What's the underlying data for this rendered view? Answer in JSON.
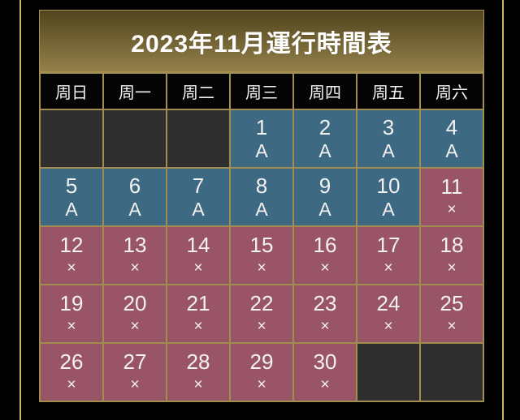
{
  "title": "2023年11月運行時間表",
  "calendar": {
    "weekdays": [
      "周日",
      "周一",
      "周二",
      "周三",
      "周四",
      "周五",
      "周六"
    ],
    "weeks": [
      [
        null,
        null,
        null,
        {
          "day": "1",
          "mark": "A"
        },
        {
          "day": "2",
          "mark": "A"
        },
        {
          "day": "3",
          "mark": "A"
        },
        {
          "day": "4",
          "mark": "A"
        }
      ],
      [
        {
          "day": "5",
          "mark": "A"
        },
        {
          "day": "6",
          "mark": "A"
        },
        {
          "day": "7",
          "mark": "A"
        },
        {
          "day": "8",
          "mark": "A"
        },
        {
          "day": "9",
          "mark": "A"
        },
        {
          "day": "10",
          "mark": "A"
        },
        {
          "day": "11",
          "mark": "×"
        }
      ],
      [
        {
          "day": "12",
          "mark": "×"
        },
        {
          "day": "13",
          "mark": "×"
        },
        {
          "day": "14",
          "mark": "×"
        },
        {
          "day": "15",
          "mark": "×"
        },
        {
          "day": "16",
          "mark": "×"
        },
        {
          "day": "17",
          "mark": "×"
        },
        {
          "day": "18",
          "mark": "×"
        }
      ],
      [
        {
          "day": "19",
          "mark": "×"
        },
        {
          "day": "20",
          "mark": "×"
        },
        {
          "day": "21",
          "mark": "×"
        },
        {
          "day": "22",
          "mark": "×"
        },
        {
          "day": "23",
          "mark": "×"
        },
        {
          "day": "24",
          "mark": "×"
        },
        {
          "day": "25",
          "mark": "×"
        }
      ],
      [
        {
          "day": "26",
          "mark": "×"
        },
        {
          "day": "27",
          "mark": "×"
        },
        {
          "day": "28",
          "mark": "×"
        },
        {
          "day": "29",
          "mark": "×"
        },
        {
          "day": "30",
          "mark": "×"
        },
        null,
        null
      ]
    ]
  },
  "colors": {
    "background": "#000000",
    "frame_line_gold": "#c9b166",
    "table_border_gold": "#a28d51",
    "title_gradient_top": "#51451e",
    "title_gradient_bottom": "#93804a",
    "operating_day_bg": "#3d6a82",
    "closed_day_bg": "#9a5468",
    "empty_cell_bg": "#2e2e2e",
    "weekday_row_bg": "#050505",
    "text": "#f3f1f2"
  }
}
